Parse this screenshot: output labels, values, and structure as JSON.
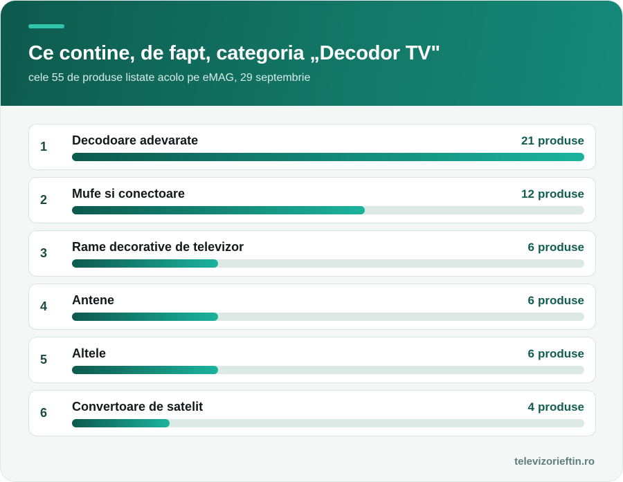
{
  "header": {
    "title": "Ce contine, de fapt, categoria „Decodor TV\"",
    "subtitle": "cele 55 de produse listate acolo pe eMAG, 29 septembrie"
  },
  "chart_data": {
    "type": "bar",
    "categories": [
      "Decodoare adevarate",
      "Mufe si conectoare",
      "Rame decorative de televizor",
      "Antene",
      "Altele",
      "Convertoare de satelit"
    ],
    "values": [
      21,
      12,
      6,
      6,
      6,
      4
    ],
    "ranks": [
      "1",
      "2",
      "3",
      "4",
      "5",
      "6"
    ],
    "unit": "produse",
    "xlim": [
      0,
      21
    ],
    "colors": {
      "bar_start": "#0d5a4e",
      "bar_end": "#1bb39d",
      "track": "#dde9e5"
    }
  },
  "footer": {
    "site": "televizorieftin.ro"
  }
}
